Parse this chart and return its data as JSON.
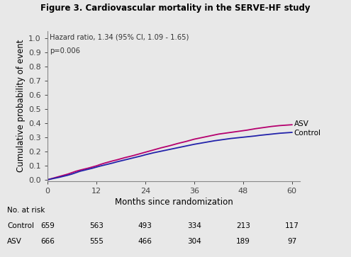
{
  "title": "Figure 3. Cardiovascular mortality in the SERVE-HF study",
  "annotation_line1": "Hazard ratio, 1.34 (95% CI, 1.09 - 1.65)",
  "annotation_line2": "p=0.006",
  "xlabel": "Months since randomization",
  "ylabel": "Cumulative probability of event",
  "xlim": [
    0,
    62
  ],
  "ylim": [
    -0.01,
    1.05
  ],
  "xticks": [
    0,
    12,
    24,
    36,
    48,
    60
  ],
  "yticks": [
    0.0,
    0.1,
    0.2,
    0.3,
    0.4,
    0.5,
    0.6,
    0.7,
    0.8,
    0.9,
    1.0
  ],
  "asv_color": "#b5006e",
  "control_color": "#2222aa",
  "bg_color": "#e8e8e8",
  "plot_bg_color": "#e8e8e8",
  "no_at_risk_label": "No. at risk",
  "control_label": "Control",
  "asv_label": "ASV",
  "control_risk": [
    659,
    563,
    493,
    334,
    213,
    117
  ],
  "asv_risk": [
    666,
    555,
    466,
    304,
    189,
    97
  ],
  "risk_months": [
    0,
    12,
    24,
    36,
    48,
    60
  ],
  "asv_x": [
    0,
    1,
    2,
    3,
    4,
    5,
    6,
    7,
    8,
    9,
    10,
    11,
    12,
    13,
    14,
    15,
    16,
    17,
    18,
    19,
    20,
    21,
    22,
    23,
    24,
    25,
    26,
    27,
    28,
    29,
    30,
    31,
    32,
    33,
    34,
    35,
    36,
    37,
    38,
    39,
    40,
    41,
    42,
    43,
    44,
    45,
    46,
    47,
    48,
    49,
    50,
    51,
    52,
    53,
    54,
    55,
    56,
    57,
    58,
    59,
    60
  ],
  "asv_y": [
    0.0,
    0.008,
    0.016,
    0.024,
    0.032,
    0.04,
    0.05,
    0.06,
    0.068,
    0.075,
    0.082,
    0.09,
    0.098,
    0.108,
    0.117,
    0.125,
    0.133,
    0.14,
    0.148,
    0.156,
    0.163,
    0.17,
    0.178,
    0.186,
    0.194,
    0.202,
    0.21,
    0.218,
    0.226,
    0.233,
    0.24,
    0.248,
    0.256,
    0.263,
    0.27,
    0.278,
    0.286,
    0.292,
    0.298,
    0.304,
    0.31,
    0.316,
    0.322,
    0.326,
    0.33,
    0.334,
    0.338,
    0.342,
    0.346,
    0.35,
    0.355,
    0.36,
    0.364,
    0.368,
    0.372,
    0.376,
    0.379,
    0.382,
    0.384,
    0.386,
    0.388
  ],
  "control_x": [
    0,
    1,
    2,
    3,
    4,
    5,
    6,
    7,
    8,
    9,
    10,
    11,
    12,
    13,
    14,
    15,
    16,
    17,
    18,
    19,
    20,
    21,
    22,
    23,
    24,
    25,
    26,
    27,
    28,
    29,
    30,
    31,
    32,
    33,
    34,
    35,
    36,
    37,
    38,
    39,
    40,
    41,
    42,
    43,
    44,
    45,
    46,
    47,
    48,
    49,
    50,
    51,
    52,
    53,
    54,
    55,
    56,
    57,
    58,
    59,
    60
  ],
  "control_y": [
    0.0,
    0.006,
    0.012,
    0.018,
    0.025,
    0.032,
    0.04,
    0.05,
    0.06,
    0.067,
    0.074,
    0.081,
    0.089,
    0.097,
    0.104,
    0.111,
    0.118,
    0.126,
    0.133,
    0.14,
    0.147,
    0.154,
    0.161,
    0.168,
    0.176,
    0.183,
    0.19,
    0.196,
    0.202,
    0.208,
    0.214,
    0.22,
    0.226,
    0.232,
    0.238,
    0.244,
    0.25,
    0.255,
    0.26,
    0.265,
    0.27,
    0.275,
    0.279,
    0.283,
    0.287,
    0.291,
    0.294,
    0.297,
    0.3,
    0.303,
    0.306,
    0.309,
    0.313,
    0.316,
    0.319,
    0.322,
    0.325,
    0.328,
    0.33,
    0.332,
    0.334
  ]
}
